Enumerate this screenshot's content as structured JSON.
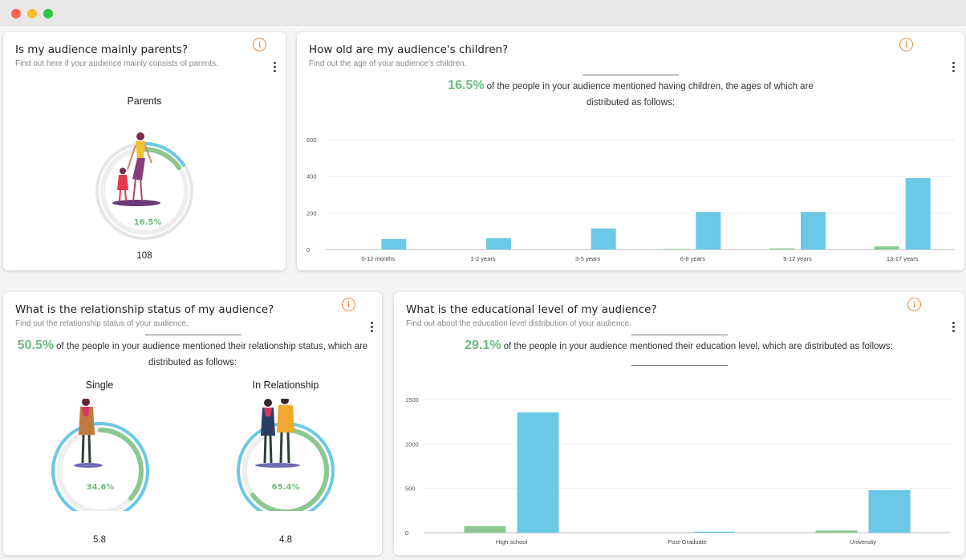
{
  "colors": {
    "green": "#8cc792",
    "blue": "#6bc8e6",
    "accent": "#f08a3c",
    "track": "#e6e6e6"
  },
  "parents_card": {
    "title": "Is my audience mainly parents?",
    "subtitle": "Find out here if your audience mainly consists of parents.",
    "info_icon": "info-icon",
    "menu_icon": "kebab-menu-icon",
    "label": "Parents",
    "percent_text": "16.5%",
    "percent_value": 16.5,
    "count": "108"
  },
  "children_card": {
    "title": "How old are my audience's children?",
    "subtitle": "Find out the age of your audience's children.",
    "percent": "16.5%",
    "text_line1": "of the people in your audience mentioned having children, the ages of which are",
    "text_line2": "distributed as follows:"
  },
  "relationship_card": {
    "title": "What is the relationship status of my audience?",
    "subtitle": "Find out the relationship status of your audience.",
    "percent": "50.5%",
    "text_line1": "of the people in your audience mentioned their relationship status, which are",
    "text_line2": "distributed as follows:",
    "single": {
      "label": "Single",
      "percent_text": "34.6%",
      "percent_value": 34.6,
      "count": "5.8"
    },
    "relation": {
      "label": "In Relationship",
      "percent_text": "65.4%",
      "percent_value": 65.4,
      "count": "4.8"
    }
  },
  "education_card": {
    "title": "What is the educational level of my audience?",
    "subtitle": "Find out about the education level distribution of your audience.",
    "percent": "29.1%",
    "text_line1": "of the people in your audience mentioned their education level, which are distributed as follows:"
  },
  "chart_data": [
    {
      "type": "bar",
      "categories": [
        "0-12 months",
        "1-2 years",
        "3-5 years",
        "6-8 years",
        "9-12 years",
        "13-17 years"
      ],
      "series": [
        {
          "values": [
            0,
            0,
            0,
            4,
            6,
            17
          ]
        },
        {
          "values": [
            57,
            62,
            115,
            205,
            205,
            390
          ]
        }
      ],
      "ylim": [
        0,
        600
      ],
      "yticks": [
        0,
        200,
        400,
        600
      ],
      "grid": true
    },
    {
      "type": "bar",
      "categories": [
        "High school",
        "Post-Graduate",
        "University"
      ],
      "series": [
        {
          "values": [
            75,
            0,
            25
          ]
        },
        {
          "values": [
            1355,
            12,
            480
          ]
        }
      ],
      "ylim": [
        0,
        1500
      ],
      "yticks": [
        0,
        500,
        1000,
        1500
      ],
      "grid": true
    }
  ]
}
